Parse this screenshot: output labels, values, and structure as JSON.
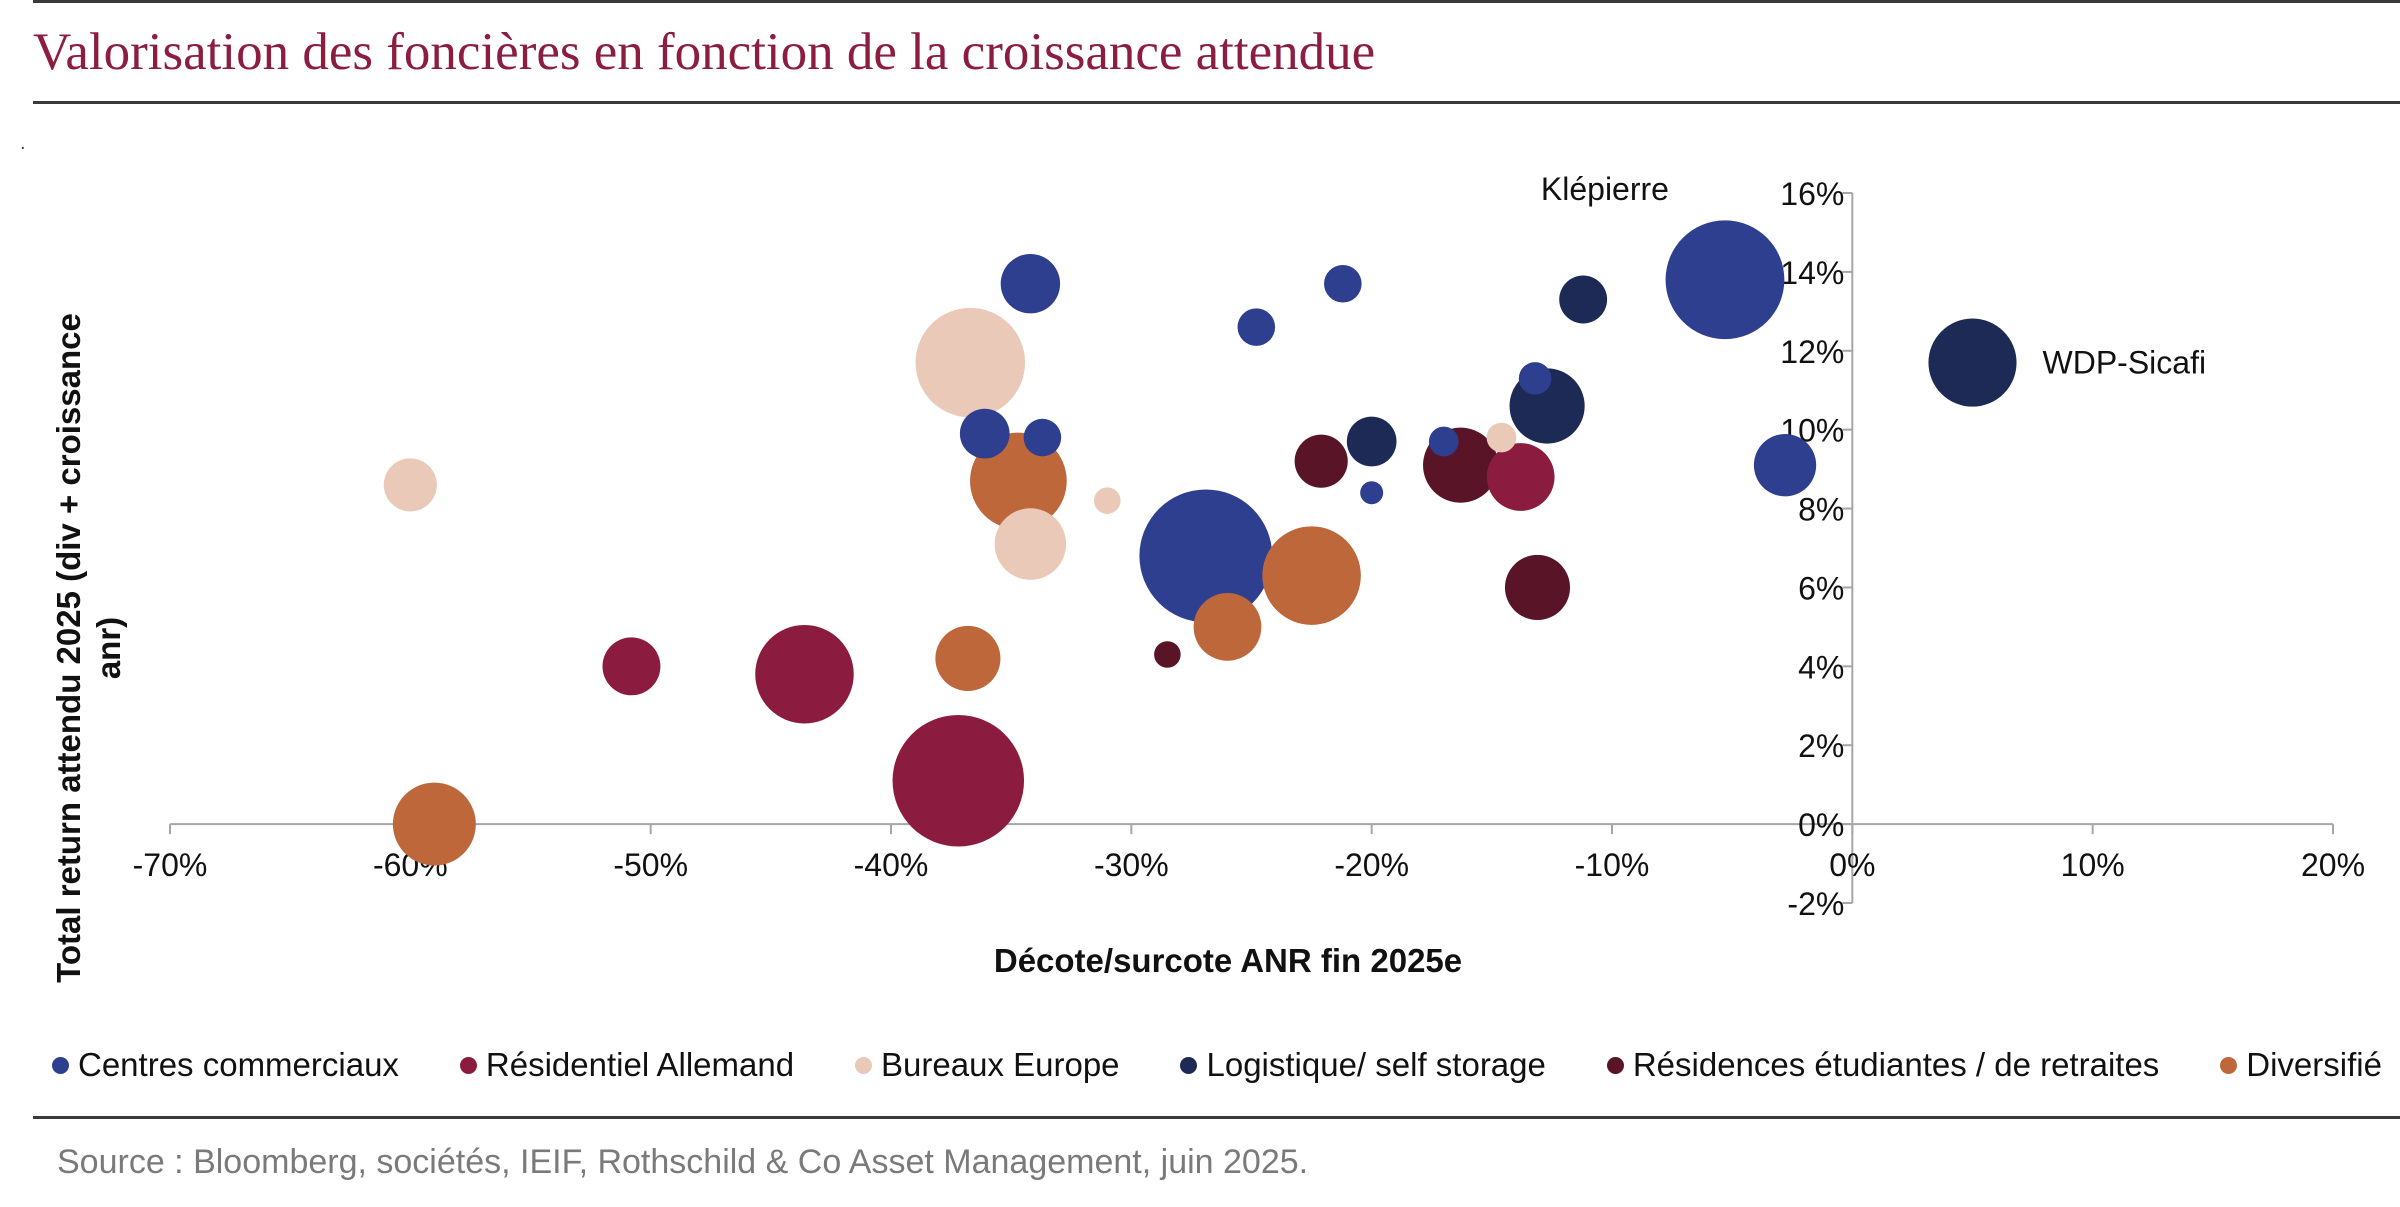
{
  "page": {
    "title": "Valorisation des foncières en fonction de la croissance attendue",
    "dot": ".",
    "source": "Source : Bloomberg, sociétés, IEIF, Rothschild & Co Asset Management, juin 2025."
  },
  "colors": {
    "title": "#8c1d40",
    "Centres commerciaux": "#2e3f8f",
    "Résidentiel Allemand": "#8b1c3f",
    "Bureaux Europe": "#ebc9b9",
    "Logistique/ self storage": "#1d2a55",
    "Résidences étudiantes / de retraites": "#5a1428",
    "Diversifié": "#bd673b"
  },
  "chart_data": {
    "type": "scatter",
    "title": "",
    "xlabel": "Décote/surcote ANR fin 2025e",
    "ylabel": "Total return attendu 2025 (div + croissance anr)",
    "xlim": [
      -0.7,
      0.2
    ],
    "ylim": [
      -0.02,
      0.16
    ],
    "x_ticks": [
      {
        "v": -0.7,
        "label": "-70%"
      },
      {
        "v": -0.6,
        "label": "-60%"
      },
      {
        "v": -0.5,
        "label": "-50%"
      },
      {
        "v": -0.4,
        "label": "-40%"
      },
      {
        "v": -0.3,
        "label": "-30%"
      },
      {
        "v": -0.2,
        "label": "-20%"
      },
      {
        "v": -0.1,
        "label": "-10%"
      },
      {
        "v": 0.0,
        "label": "0%"
      },
      {
        "v": 0.1,
        "label": "10%"
      },
      {
        "v": 0.2,
        "label": "20%"
      }
    ],
    "y_ticks": [
      {
        "v": -0.02,
        "label": "-2%"
      },
      {
        "v": 0.0,
        "label": "0%"
      },
      {
        "v": 0.02,
        "label": "2%"
      },
      {
        "v": 0.04,
        "label": "4%"
      },
      {
        "v": 0.06,
        "label": "6%"
      },
      {
        "v": 0.08,
        "label": "8%"
      },
      {
        "v": 0.1,
        "label": "10%"
      },
      {
        "v": 0.12,
        "label": "12%"
      },
      {
        "v": 0.14,
        "label": "14%"
      },
      {
        "v": 0.16,
        "label": "16%"
      }
    ],
    "grid": false,
    "legend_position": "bottom",
    "annotations": [
      {
        "text": "Klépierre",
        "x": -0.053,
        "y": 0.138
      },
      {
        "text": "WDP-Sicafi",
        "x": 0.05,
        "y": 0.117
      }
    ],
    "series": [
      {
        "name": "Centres commerciaux",
        "points": [
          {
            "x": -0.342,
            "y": 0.137,
            "size": 2.0
          },
          {
            "x": -0.248,
            "y": 0.126,
            "size": 0.8
          },
          {
            "x": -0.212,
            "y": 0.137,
            "size": 0.8
          },
          {
            "x": -0.361,
            "y": 0.099,
            "size": 1.4
          },
          {
            "x": -0.337,
            "y": 0.098,
            "size": 0.8
          },
          {
            "x": -0.269,
            "y": 0.068,
            "size": 10.0
          },
          {
            "x": -0.2,
            "y": 0.084,
            "size": 0.3
          },
          {
            "x": -0.17,
            "y": 0.097,
            "size": 0.5
          },
          {
            "x": -0.132,
            "y": 0.113,
            "size": 0.6
          },
          {
            "x": -0.053,
            "y": 0.138,
            "size": 8.0
          },
          {
            "x": -0.028,
            "y": 0.091,
            "size": 2.2
          }
        ]
      },
      {
        "name": "Résidentiel Allemand",
        "points": [
          {
            "x": -0.508,
            "y": 0.04,
            "size": 1.9
          },
          {
            "x": -0.436,
            "y": 0.038,
            "size": 5.5
          },
          {
            "x": -0.372,
            "y": 0.011,
            "size": 9.8
          },
          {
            "x": -0.138,
            "y": 0.088,
            "size": 2.6
          }
        ]
      },
      {
        "name": "Bureaux Europe",
        "points": [
          {
            "x": -0.6,
            "y": 0.086,
            "size": 1.6
          },
          {
            "x": -0.367,
            "y": 0.117,
            "size": 6.8
          },
          {
            "x": -0.342,
            "y": 0.071,
            "size": 2.9
          },
          {
            "x": -0.31,
            "y": 0.082,
            "size": 0.4
          },
          {
            "x": -0.146,
            "y": 0.098,
            "size": 0.5
          }
        ]
      },
      {
        "name": "Logistique/ self storage",
        "points": [
          {
            "x": -0.2,
            "y": 0.097,
            "size": 1.4
          },
          {
            "x": -0.127,
            "y": 0.106,
            "size": 3.2
          },
          {
            "x": -0.112,
            "y": 0.133,
            "size": 1.3
          },
          {
            "x": 0.05,
            "y": 0.117,
            "size": 4.4
          }
        ]
      },
      {
        "name": "Résidences étudiantes / de retraites",
        "points": [
          {
            "x": -0.285,
            "y": 0.043,
            "size": 0.4
          },
          {
            "x": -0.221,
            "y": 0.092,
            "size": 1.6
          },
          {
            "x": -0.163,
            "y": 0.091,
            "size": 3.2
          },
          {
            "x": -0.131,
            "y": 0.06,
            "size": 2.4
          }
        ]
      },
      {
        "name": "Diversifié",
        "points": [
          {
            "x": -0.59,
            "y": 0.0,
            "size": 3.9
          },
          {
            "x": -0.368,
            "y": 0.042,
            "size": 2.4
          },
          {
            "x": -0.347,
            "y": 0.087,
            "size": 5.3
          },
          {
            "x": -0.26,
            "y": 0.05,
            "size": 2.6
          },
          {
            "x": -0.225,
            "y": 0.063,
            "size": 5.5
          }
        ]
      }
    ]
  }
}
